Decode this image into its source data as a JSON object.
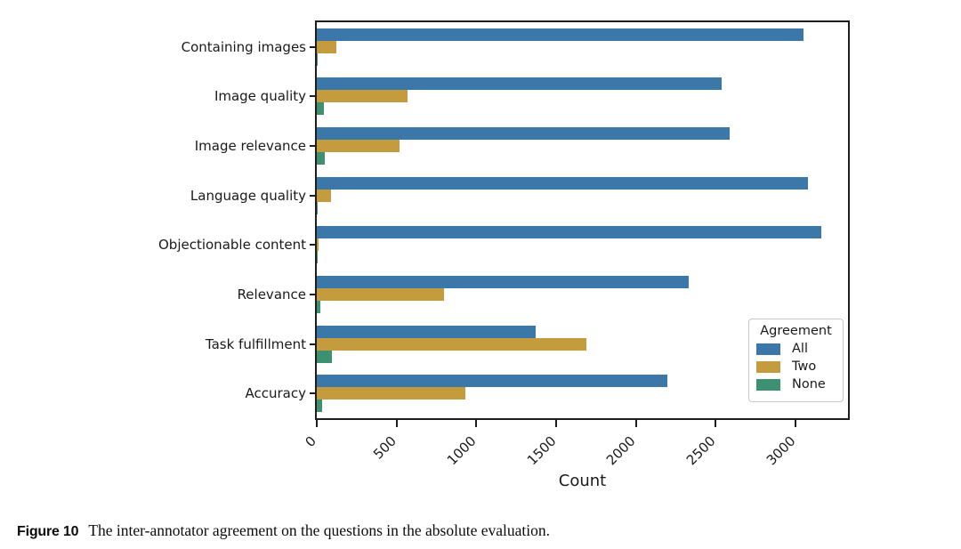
{
  "chart_data": {
    "type": "bar",
    "orientation": "horizontal",
    "title": "",
    "xlabel": "Count",
    "ylabel": "",
    "categories": [
      "Containing images",
      "Image quality",
      "Image relevance",
      "Language quality",
      "Objectionable content",
      "Relevance",
      "Task fulfillment",
      "Accuracy"
    ],
    "series": [
      {
        "name": "All",
        "color": "#3b77a8",
        "values": [
          3050,
          2540,
          2590,
          3080,
          3165,
          2330,
          1370,
          2200
        ]
      },
      {
        "name": "Two",
        "color": "#c49c3e",
        "values": [
          120,
          570,
          520,
          90,
          10,
          800,
          1690,
          930
        ]
      },
      {
        "name": "None",
        "color": "#3d9070",
        "values": [
          3,
          45,
          50,
          6,
          2,
          25,
          95,
          35
        ]
      }
    ],
    "x_ticks": [
      0,
      500,
      1000,
      1500,
      2000,
      2500,
      3000
    ],
    "xlim": [
      0,
      3330
    ],
    "grid": false,
    "legend_title": "Agreement",
    "legend_position": "lower right",
    "frame_color": "#1e1e1e"
  },
  "caption": {
    "label": "Figure 10",
    "text": "The inter-annotator agreement on the questions in the absolute evaluation."
  }
}
